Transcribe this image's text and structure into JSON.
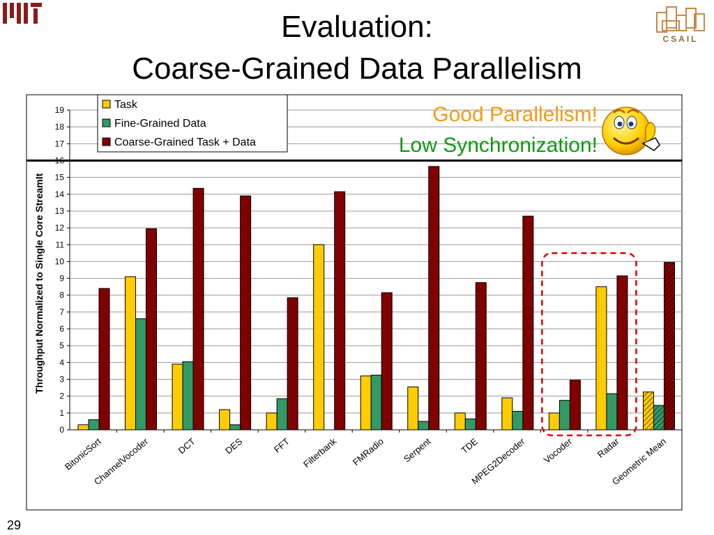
{
  "slide": {
    "title_line1": "Evaluation:",
    "title_line2": "Coarse-Grained Data Parallelism",
    "page_number": "29",
    "logo_text": "CSAIL"
  },
  "callouts": {
    "line1": "Good Parallelism!",
    "line2": "Low Synchronization!"
  },
  "colors": {
    "task": "#ffcc00",
    "fine": "#339966",
    "coarse": "#800000",
    "callout_good": "#f39c12",
    "callout_low": "#119911",
    "highlight": "#dd0000",
    "threshold": "#000000"
  },
  "chart_data": {
    "type": "bar",
    "ylabel": "Throughput Normalized to Single Core StreamIt",
    "xlabel": "",
    "ylim": [
      0,
      19
    ],
    "yticks": [
      0,
      1,
      2,
      3,
      4,
      5,
      6,
      7,
      8,
      9,
      10,
      11,
      12,
      13,
      14,
      15,
      16,
      17,
      18,
      19
    ],
    "grid": true,
    "legend_position": "top-left",
    "categories": [
      "BitonicSort",
      "ChannelVocoder",
      "DCT",
      "DES",
      "FFT",
      "Filterbank",
      "FMRadio",
      "Serpent",
      "TDE",
      "MPEG2Decoder",
      "Vocoder",
      "Radar",
      "Geometric Mean"
    ],
    "series": [
      {
        "name": "Task",
        "values": [
          0.3,
          9.1,
          3.9,
          1.2,
          1.0,
          11.0,
          3.2,
          2.55,
          1.0,
          1.9,
          1.0,
          8.5,
          2.25
        ]
      },
      {
        "name": "Fine-Grained Data",
        "values": [
          0.6,
          6.6,
          4.05,
          0.3,
          1.85,
          0,
          3.25,
          0.5,
          0.65,
          1.1,
          1.75,
          2.15,
          1.45
        ]
      },
      {
        "name": "Coarse-Grained Task + Data",
        "values": [
          8.4,
          11.95,
          14.35,
          13.9,
          7.85,
          14.15,
          8.15,
          15.65,
          8.75,
          12.7,
          2.95,
          9.15,
          9.95
        ]
      }
    ],
    "threshold_line": 16,
    "highlighted_categories": [
      "Vocoder",
      "Radar"
    ]
  }
}
